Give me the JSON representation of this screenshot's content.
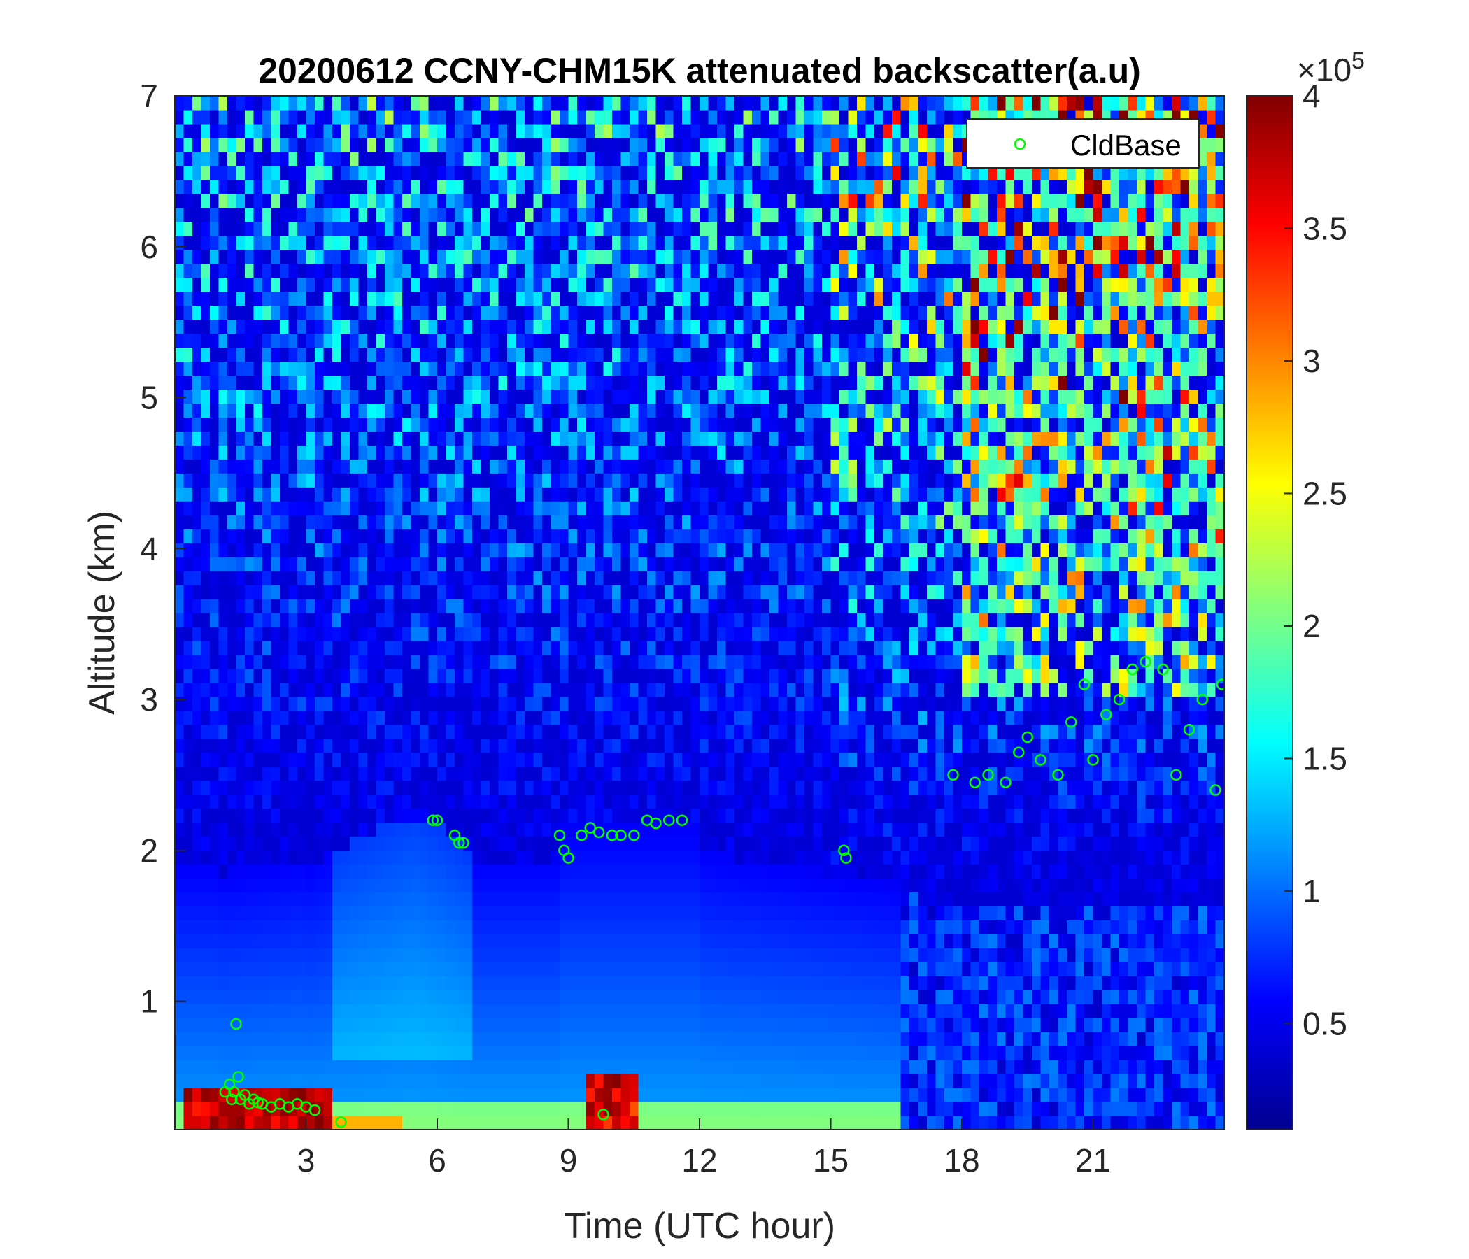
{
  "chart_data": {
    "type": "heatmap",
    "title": "20200612 CCNY-CHM15K attenuated backscatter(a.u)",
    "xlabel": "Time (UTC hour)",
    "ylabel": "Altitude (km)",
    "xlim": [
      0,
      24
    ],
    "ylim": [
      0.15,
      7
    ],
    "xticks": [
      "3",
      "6",
      "9",
      "12",
      "15",
      "18",
      "21"
    ],
    "yticks": [
      "1",
      "2",
      "3",
      "4",
      "5",
      "6",
      "7"
    ],
    "colorbar": {
      "colormap": "jet",
      "range": [
        0.1,
        4
      ],
      "ticks": [
        "0.5",
        "1",
        "1.5",
        "2",
        "2.5",
        "3",
        "3.5",
        "4"
      ],
      "exponent_label": "×10",
      "exponent": "5"
    },
    "legend": {
      "position": "top-right",
      "entries": [
        "CldBase"
      ]
    },
    "cloud_base_color": "#00ff00",
    "series": [
      {
        "name": "CldBase",
        "type": "scatter",
        "x": [
          1.15,
          1.25,
          1.3,
          1.35,
          1.4,
          1.45,
          1.5,
          1.6,
          1.7,
          1.8,
          1.9,
          2.0,
          2.2,
          2.4,
          2.6,
          2.8,
          3.0,
          3.2,
          3.8,
          5.9,
          6.0,
          6.4,
          6.5,
          6.6,
          8.8,
          8.9,
          9.0,
          9.3,
          9.5,
          9.7,
          9.8,
          10.0,
          10.2,
          10.5,
          10.8,
          11.0,
          11.3,
          11.6,
          15.3,
          15.35,
          17.8,
          18.3,
          18.6,
          19.0,
          19.3,
          19.5,
          19.8,
          20.2,
          20.5,
          20.8,
          21.0,
          21.3,
          21.6,
          21.9,
          22.2,
          22.6,
          22.9,
          23.2,
          23.5,
          23.8,
          23.95
        ],
        "y": [
          0.4,
          0.45,
          0.35,
          0.4,
          0.85,
          0.5,
          0.35,
          0.38,
          0.32,
          0.35,
          0.33,
          0.32,
          0.3,
          0.32,
          0.3,
          0.32,
          0.3,
          0.28,
          0.2,
          2.2,
          2.2,
          2.1,
          2.05,
          2.05,
          2.1,
          2.0,
          1.95,
          2.1,
          2.15,
          2.12,
          0.25,
          2.1,
          2.1,
          2.1,
          2.2,
          2.18,
          2.2,
          2.2,
          2.0,
          1.95,
          2.5,
          2.45,
          2.5,
          2.45,
          2.65,
          2.75,
          2.6,
          2.5,
          2.85,
          3.1,
          2.6,
          2.9,
          3.0,
          3.2,
          3.25,
          3.2,
          2.5,
          2.8,
          3.0,
          2.4,
          3.1
        ]
      }
    ]
  }
}
